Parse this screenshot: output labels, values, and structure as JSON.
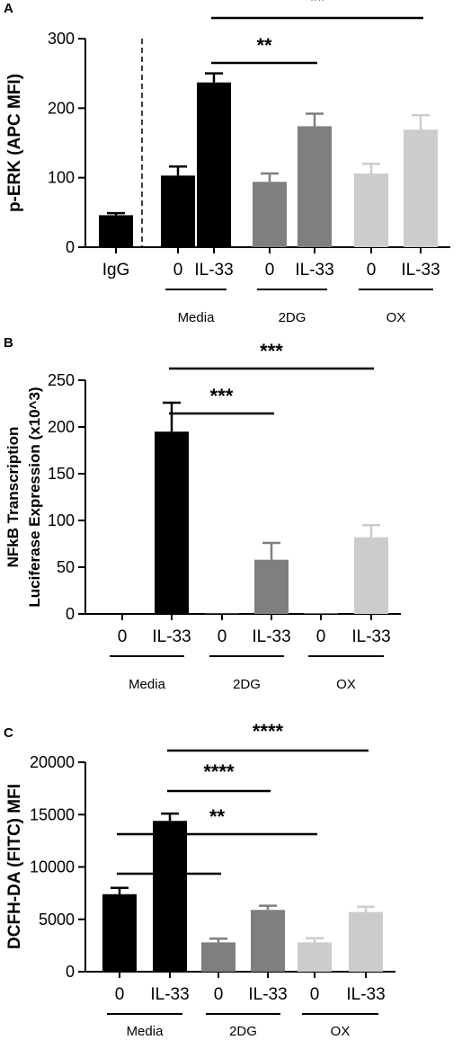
{
  "colors": {
    "media": "#000000",
    "twodg": "#7f7f7f",
    "ox": "#cccccc",
    "igg": "#000000"
  },
  "chart_data": [
    {
      "type": "bar",
      "panel": "A",
      "ylabel": "p-ERK (APC MFI)",
      "ylim": [
        0,
        300
      ],
      "yticks": [
        0,
        100,
        200,
        300
      ],
      "categories": [
        "IgG",
        "0",
        "IL-33",
        "0",
        "IL-33",
        "0",
        "IL-33"
      ],
      "values": [
        46,
        103,
        237,
        94,
        174,
        106,
        169
      ],
      "errors": [
        3,
        13,
        13,
        12,
        18,
        14,
        21
      ],
      "bar_colors": [
        "#000000",
        "#000000",
        "#000000",
        "#7f7f7f",
        "#7f7f7f",
        "#cccccc",
        "#cccccc"
      ],
      "groups": [
        {
          "label": "Media",
          "from": 1,
          "to": 2
        },
        {
          "label": "2DG",
          "from": 3,
          "to": 4
        },
        {
          "label": "OX",
          "from": 5,
          "to": 6
        }
      ],
      "dashed_separator": true,
      "significance": [
        {
          "label": "**",
          "from": 2,
          "to": 6
        },
        {
          "label": "**",
          "from": 2,
          "to": 4
        }
      ]
    },
    {
      "type": "bar",
      "panel": "B",
      "ylabel": "NFkB Transcription",
      "ylabel2": "Luciferase Expression (x10^3)",
      "ylim": [
        0,
        250
      ],
      "yticks": [
        0,
        50,
        100,
        150,
        200,
        250
      ],
      "categories": [
        "0",
        "IL-33",
        "0",
        "IL-33",
        "0",
        "IL-33"
      ],
      "values": [
        0.5,
        195,
        0.5,
        58,
        0.5,
        82
      ],
      "errors": [
        0,
        31,
        0,
        18,
        0,
        13
      ],
      "bar_colors": [
        "#000000",
        "#000000",
        "#7f7f7f",
        "#7f7f7f",
        "#cccccc",
        "#cccccc"
      ],
      "groups": [
        {
          "label": "Media",
          "from": 0,
          "to": 1
        },
        {
          "label": "2DG",
          "from": 2,
          "to": 3
        },
        {
          "label": "OX",
          "from": 4,
          "to": 5
        }
      ],
      "dashed_separator": false,
      "significance": [
        {
          "label": "***",
          "from": 1,
          "to": 5
        },
        {
          "label": "***",
          "from": 1,
          "to": 3
        }
      ]
    },
    {
      "type": "bar",
      "panel": "C",
      "ylabel": "DCFH-DA (FITC) MFI",
      "ylim": [
        0,
        20000
      ],
      "yticks": [
        0,
        5000,
        10000,
        15000,
        20000
      ],
      "categories": [
        "0",
        "IL-33",
        "0",
        "IL-33",
        "0",
        "IL-33"
      ],
      "values": [
        7400,
        14400,
        2800,
        5900,
        2800,
        5700
      ],
      "errors": [
        600,
        700,
        350,
        400,
        400,
        500
      ],
      "bar_colors": [
        "#000000",
        "#000000",
        "#7f7f7f",
        "#7f7f7f",
        "#cccccc",
        "#cccccc"
      ],
      "groups": [
        {
          "label": "Media",
          "from": 0,
          "to": 1
        },
        {
          "label": "2DG",
          "from": 2,
          "to": 3
        },
        {
          "label": "OX",
          "from": 4,
          "to": 5
        }
      ],
      "dashed_separator": false,
      "significance": [
        {
          "label": "****",
          "from": 1,
          "to": 5
        },
        {
          "label": "****",
          "from": 1,
          "to": 3
        },
        {
          "label": "**",
          "from": 0,
          "to": 4
        },
        {
          "label": "**",
          "from": 0,
          "to": 2
        }
      ]
    }
  ]
}
